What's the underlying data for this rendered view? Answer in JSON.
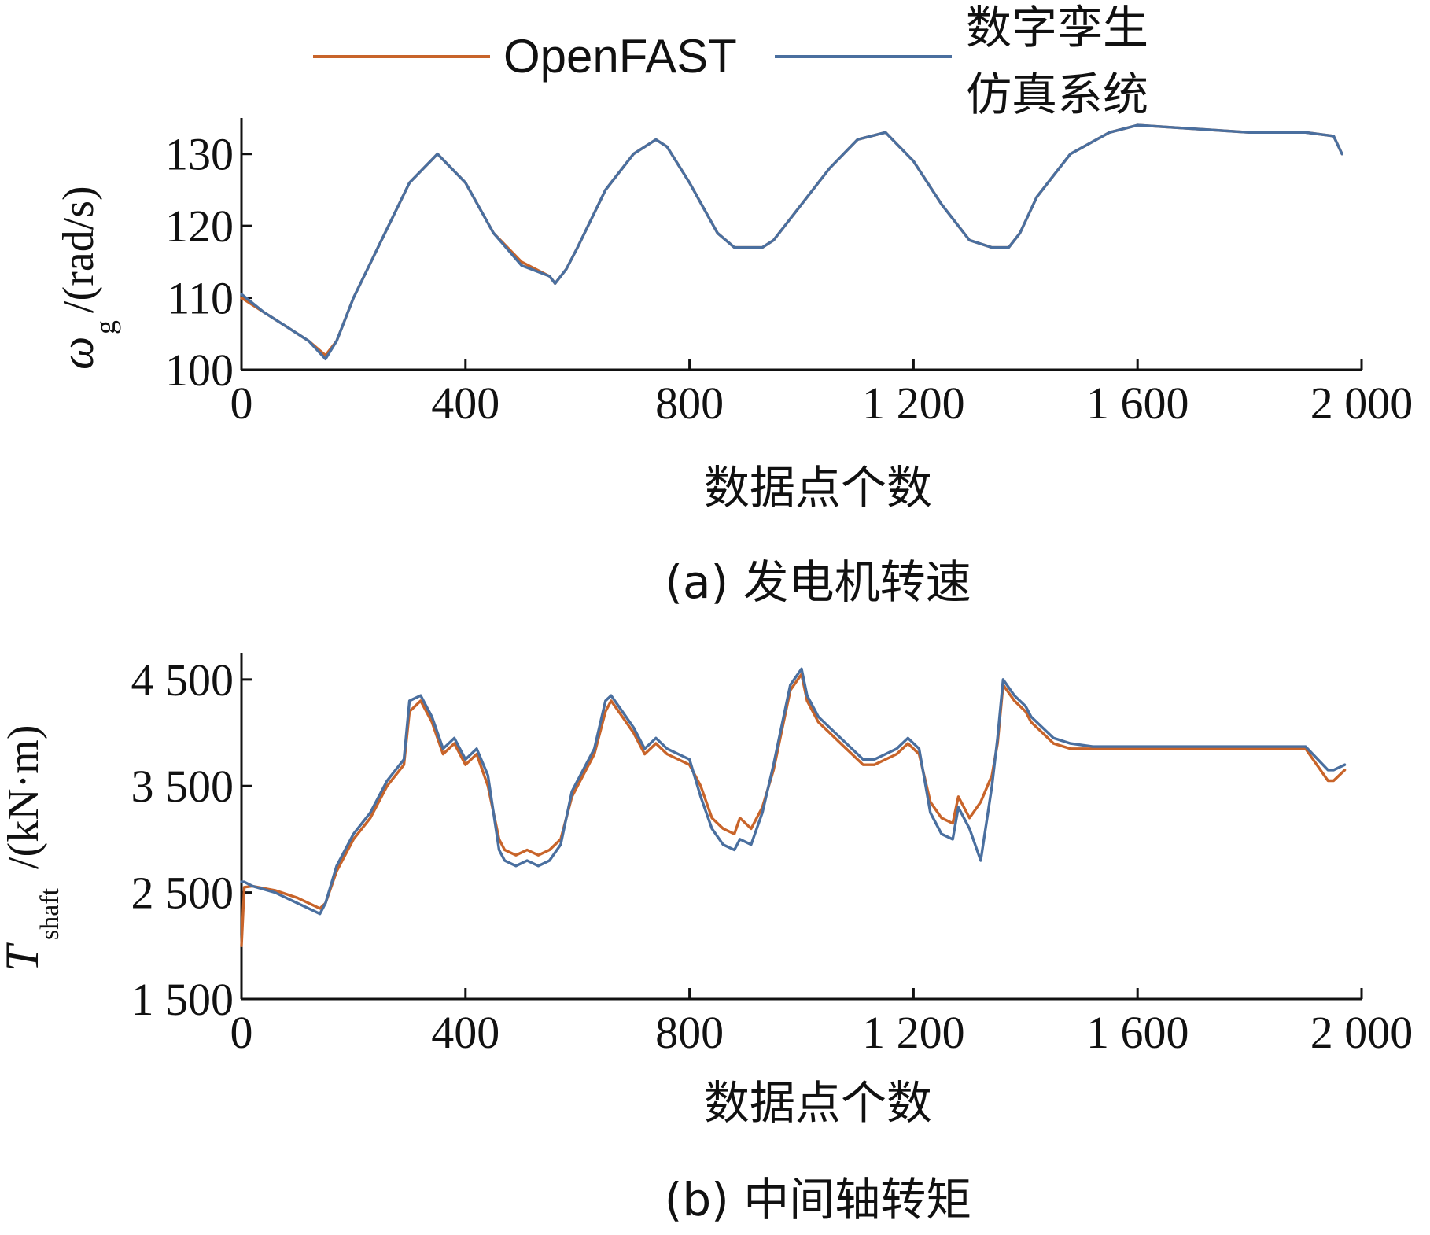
{
  "colors": {
    "openfast": "#c8642a",
    "digital_twin": "#4a6f9f"
  },
  "legend": [
    {
      "name": "OpenFAST",
      "color_key": "openfast"
    },
    {
      "name_lines": [
        "数字孪生",
        "仿真系统"
      ],
      "color_key": "digital_twin"
    }
  ],
  "chart_data": [
    {
      "id": "a",
      "type": "line",
      "caption": "(a) 发电机转速",
      "ylabel": {
        "symbol": "ω",
        "sub": "g",
        "unit": "/(rad/s)"
      },
      "xlabel": "数据点个数",
      "xlim": [
        0,
        2000
      ],
      "ylim": [
        100,
        135
      ],
      "xticks": [
        0,
        400,
        800,
        1200,
        1600,
        2000
      ],
      "xtick_labels": [
        "0",
        "400",
        "800",
        "1 200",
        "1 600",
        "2 000"
      ],
      "yticks": [
        100,
        110,
        120,
        130
      ],
      "ytick_labels": [
        "100",
        "110",
        "120",
        "130"
      ],
      "series": [
        {
          "name": "OpenFAST",
          "color_key": "openfast",
          "x": [
            0,
            40,
            80,
            120,
            150,
            170,
            200,
            250,
            300,
            350,
            400,
            450,
            500,
            550,
            560,
            580,
            600,
            650,
            700,
            740,
            760,
            800,
            850,
            880,
            930,
            950,
            980,
            1050,
            1100,
            1150,
            1200,
            1250,
            1300,
            1340,
            1370,
            1390,
            1420,
            1480,
            1550,
            1600,
            1700,
            1800,
            1900,
            1950,
            1965
          ],
          "y": [
            110,
            108,
            106,
            104,
            102,
            104,
            110,
            118,
            126,
            130,
            126,
            119,
            115,
            113,
            112,
            114,
            117,
            125,
            130,
            132,
            131,
            126,
            119,
            117,
            117,
            118,
            121,
            128,
            132,
            133,
            129,
            123,
            118,
            117,
            117,
            119,
            124,
            130,
            133,
            134,
            133.5,
            133,
            133,
            132.5,
            130
          ]
        },
        {
          "name": "数字孪生仿真系统",
          "color_key": "digital_twin",
          "x": [
            0,
            40,
            80,
            120,
            150,
            170,
            200,
            250,
            300,
            350,
            400,
            450,
            500,
            550,
            560,
            580,
            600,
            650,
            700,
            740,
            760,
            800,
            850,
            880,
            930,
            950,
            980,
            1050,
            1100,
            1150,
            1200,
            1250,
            1300,
            1340,
            1370,
            1390,
            1420,
            1480,
            1550,
            1600,
            1700,
            1800,
            1900,
            1950,
            1965
          ],
          "y": [
            110.5,
            108,
            106,
            104,
            101.5,
            104,
            110,
            118,
            126,
            130,
            126,
            119,
            114.5,
            113,
            112,
            114,
            117,
            125,
            130,
            132,
            131,
            126,
            119,
            117,
            117,
            118,
            121,
            128,
            132,
            133,
            129,
            123,
            118,
            117,
            117,
            119,
            124,
            130,
            133,
            134,
            133.5,
            133,
            133,
            132.5,
            130
          ]
        }
      ]
    },
    {
      "id": "b",
      "type": "line",
      "caption": "(b) 中间轴转矩",
      "ylabel": {
        "symbol": "T",
        "sub": "shaft",
        "unit": "/(kN·m)"
      },
      "xlabel": "数据点个数",
      "xlim": [
        0,
        2000
      ],
      "ylim": [
        1500,
        4750
      ],
      "xticks": [
        0,
        400,
        800,
        1200,
        1600,
        2000
      ],
      "xtick_labels": [
        "0",
        "400",
        "800",
        "1 200",
        "1 600",
        "2 000"
      ],
      "yticks": [
        1500,
        2500,
        3500,
        4500
      ],
      "ytick_labels": [
        "1 500",
        "2 500",
        "3 500",
        "4 500"
      ],
      "series": [
        {
          "name": "OpenFAST",
          "color_key": "openfast",
          "x": [
            0,
            5,
            20,
            60,
            100,
            140,
            150,
            170,
            200,
            230,
            260,
            290,
            300,
            320,
            340,
            360,
            380,
            400,
            420,
            440,
            460,
            470,
            490,
            510,
            530,
            550,
            570,
            590,
            610,
            630,
            650,
            660,
            680,
            700,
            720,
            740,
            760,
            780,
            800,
            820,
            840,
            860,
            880,
            890,
            910,
            930,
            950,
            960,
            980,
            1000,
            1010,
            1030,
            1050,
            1070,
            1090,
            1110,
            1130,
            1150,
            1170,
            1190,
            1210,
            1230,
            1250,
            1270,
            1280,
            1300,
            1320,
            1340,
            1350,
            1360,
            1380,
            1400,
            1410,
            1430,
            1450,
            1480,
            1520,
            1560,
            1600,
            1700,
            1800,
            1900,
            1940,
            1950,
            1970
          ],
          "y": [
            2000,
            2550,
            2560,
            2520,
            2450,
            2350,
            2400,
            2700,
            3000,
            3200,
            3500,
            3700,
            4200,
            4300,
            4100,
            3800,
            3900,
            3700,
            3800,
            3500,
            3000,
            2900,
            2850,
            2900,
            2850,
            2900,
            3000,
            3400,
            3600,
            3800,
            4200,
            4300,
            4150,
            4000,
            3800,
            3900,
            3800,
            3750,
            3700,
            3500,
            3200,
            3100,
            3050,
            3200,
            3100,
            3300,
            3650,
            3900,
            4400,
            4550,
            4300,
            4100,
            4000,
            3900,
            3800,
            3700,
            3700,
            3750,
            3800,
            3900,
            3800,
            3350,
            3200,
            3150,
            3400,
            3200,
            3350,
            3600,
            3900,
            4450,
            4300,
            4200,
            4100,
            4000,
            3900,
            3850,
            3850,
            3850,
            3850,
            3850,
            3850,
            3850,
            3550,
            3550,
            3650
          ]
        },
        {
          "name": "数字孪生仿真系统",
          "color_key": "digital_twin",
          "x": [
            0,
            5,
            20,
            60,
            100,
            140,
            150,
            170,
            200,
            230,
            260,
            290,
            300,
            320,
            340,
            360,
            380,
            400,
            420,
            440,
            460,
            470,
            490,
            510,
            530,
            550,
            570,
            590,
            610,
            630,
            650,
            660,
            680,
            700,
            720,
            740,
            760,
            780,
            800,
            820,
            840,
            860,
            880,
            890,
            910,
            930,
            950,
            960,
            980,
            1000,
            1010,
            1030,
            1050,
            1070,
            1090,
            1110,
            1130,
            1150,
            1170,
            1190,
            1210,
            1230,
            1250,
            1270,
            1280,
            1300,
            1320,
            1340,
            1350,
            1360,
            1380,
            1400,
            1410,
            1430,
            1450,
            1480,
            1520,
            1560,
            1600,
            1700,
            1800,
            1900,
            1940,
            1950,
            1970
          ],
          "y": [
            2600,
            2600,
            2560,
            2500,
            2400,
            2300,
            2400,
            2750,
            3050,
            3250,
            3550,
            3750,
            4300,
            4350,
            4150,
            3850,
            3950,
            3750,
            3850,
            3600,
            2900,
            2800,
            2750,
            2800,
            2750,
            2800,
            2950,
            3450,
            3650,
            3850,
            4300,
            4350,
            4200,
            4050,
            3850,
            3950,
            3850,
            3800,
            3750,
            3400,
            3100,
            2950,
            2900,
            3000,
            2950,
            3250,
            3700,
            3950,
            4450,
            4600,
            4350,
            4150,
            4050,
            3950,
            3850,
            3750,
            3750,
            3800,
            3850,
            3950,
            3850,
            3250,
            3050,
            3000,
            3300,
            3100,
            2800,
            3500,
            3950,
            4500,
            4350,
            4250,
            4150,
            4050,
            3950,
            3900,
            3870,
            3870,
            3870,
            3870,
            3870,
            3870,
            3650,
            3650,
            3700
          ]
        }
      ]
    }
  ]
}
